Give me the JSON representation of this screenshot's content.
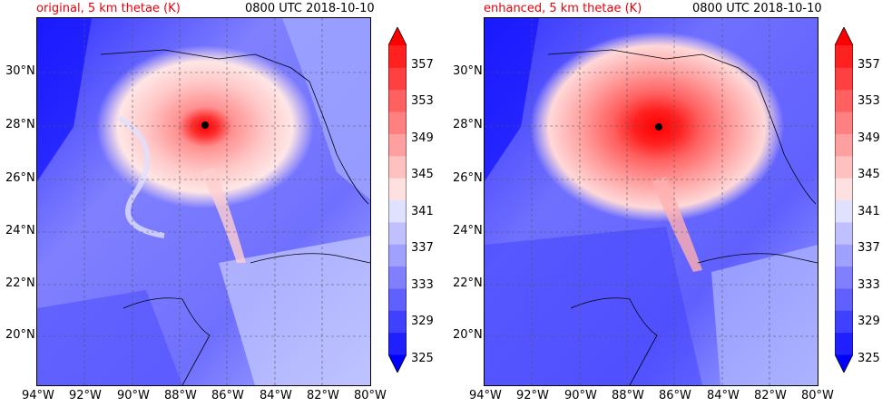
{
  "panels": [
    {
      "title_left": "original, 5 km thetae (K)",
      "title_right": "0800 UTC 2018-10-10"
    },
    {
      "title_left": "enhanced, 5 km thetae (K)",
      "title_right": "0800 UTC 2018-10-10"
    }
  ],
  "axes": {
    "lat_labels": [
      "30°N",
      "28°N",
      "26°N",
      "24°N",
      "22°N",
      "20°N"
    ],
    "lon_labels": [
      "94°W",
      "92°W",
      "90°W",
      "88°W",
      "86°W",
      "84°W",
      "82°W",
      "80°W"
    ]
  },
  "colorbar": {
    "ticks": [
      "357",
      "353",
      "349",
      "345",
      "341",
      "337",
      "333",
      "329",
      "325"
    ],
    "levels_low_to_high": [
      "#0000ff",
      "#2020ff",
      "#4040ff",
      "#6060ff",
      "#8080ff",
      "#a0a0ff",
      "#c0c0ff",
      "#e0e0ff",
      "#ffe0e0",
      "#ffc0c0",
      "#ffa0a0",
      "#ff8080",
      "#ff6060",
      "#ff4040",
      "#ff2020",
      "#ff0000"
    ]
  },
  "colors": {
    "title_accent": "#e8000b"
  }
}
